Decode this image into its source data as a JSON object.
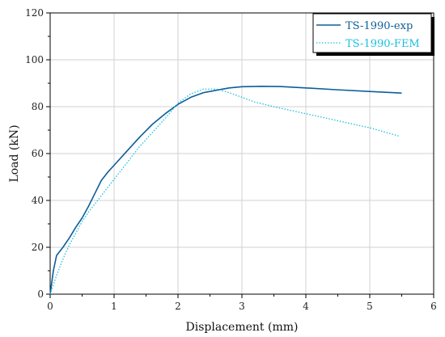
{
  "chart_data": {
    "type": "line",
    "title": "",
    "xlabel": "Displacement (mm)",
    "ylabel": "Load (kN)",
    "xlim": [
      0,
      6
    ],
    "ylim": [
      0,
      120
    ],
    "xticks": [
      0,
      1,
      2,
      3,
      4,
      5,
      6
    ],
    "yticks": [
      0,
      20,
      40,
      60,
      80,
      100,
      120
    ],
    "xtick_labels": [
      "0",
      "1",
      "2",
      "3",
      "4",
      "5",
      "6"
    ],
    "ytick_labels": [
      "0",
      "20",
      "40",
      "60",
      "80",
      "100",
      "120"
    ],
    "grid": true,
    "legend_position": "top-right",
    "series": [
      {
        "name": "TS-1990-exp",
        "color": "#0d5e9a",
        "style": "solid",
        "x": [
          0.0,
          0.05,
          0.1,
          0.2,
          0.3,
          0.4,
          0.5,
          0.6,
          0.7,
          0.8,
          0.9,
          1.0,
          1.2,
          1.4,
          1.6,
          1.8,
          2.0,
          2.2,
          2.4,
          2.6,
          2.8,
          3.0,
          3.3,
          3.6,
          4.0,
          4.5,
          5.0,
          5.5
        ],
        "y": [
          0,
          10,
          16.5,
          20,
          24,
          28.5,
          32.5,
          37.5,
          43,
          48.5,
          52,
          55,
          61,
          67,
          72.5,
          77,
          81,
          84,
          86,
          87,
          88,
          88.5,
          88.7,
          88.6,
          88,
          87.2,
          86.5,
          85.8
        ]
      },
      {
        "name": "TS-1990-FEM",
        "color": "#19bfe0",
        "style": "dotted",
        "x": [
          0.0,
          0.1,
          0.2,
          0.3,
          0.4,
          0.5,
          0.6,
          0.8,
          1.0,
          1.2,
          1.4,
          1.6,
          1.8,
          2.0,
          2.2,
          2.4,
          2.6,
          2.8,
          3.0,
          3.2,
          3.5,
          4.0,
          4.5,
          5.0,
          5.45
        ],
        "y": [
          0,
          8,
          15,
          21,
          26,
          31,
          35,
          42,
          49,
          56,
          63,
          69,
          75,
          81.5,
          85.5,
          87.5,
          87.5,
          86,
          84,
          82,
          80,
          77,
          74,
          71,
          67.5
        ]
      }
    ]
  }
}
